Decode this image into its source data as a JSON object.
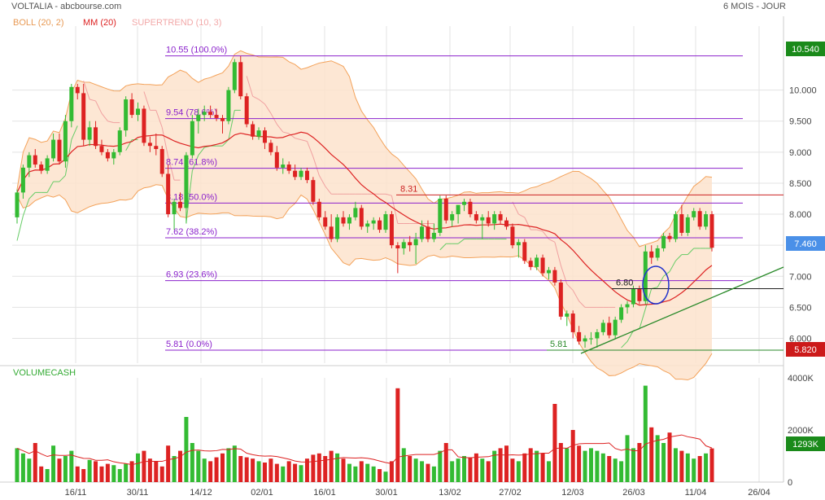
{
  "header": {
    "title": "VOLTALIA - abcbourse.com",
    "period": "6 MOIS - JOUR"
  },
  "legend": {
    "boll": "BOLL (20, 2)",
    "mm": "MM (20)",
    "supertrend": "SUPERTREND (10, 3)",
    "volume": "VOLUMECASH"
  },
  "colors": {
    "up": "#33bb33",
    "down": "#dd2222",
    "boll": "#f3a25a",
    "boll_fill": "#fde3cc",
    "mm": "#dd2222",
    "supertrend_up": "#66cc66",
    "supertrend_down": "#f0a0a0",
    "fib": "#8b22cc",
    "trend": "#2a8a2a",
    "circle": "#2233cc",
    "grid": "#e3e3e3"
  },
  "badges": {
    "top": "10.540",
    "price": "7.460",
    "low": "5.820",
    "volume": "1293K"
  },
  "chart_data": {
    "type": "candlestick",
    "ylim": [
      5.6,
      10.9
    ],
    "y_ticks": [
      "10.000",
      "9.500",
      "9.000",
      "8.500",
      "8.000",
      "7.500",
      "7.000",
      "6.500",
      "6.000"
    ],
    "x_ticks": [
      "16/11",
      "30/11",
      "14/12",
      "02/01",
      "16/01",
      "30/01",
      "13/02",
      "27/02",
      "12/03",
      "26/03",
      "11/04",
      "26/04"
    ],
    "fib_levels": [
      {
        "price": 10.55,
        "label": "10.55  (100.0%)"
      },
      {
        "price": 9.54,
        "label": "9.54  (78.6%)"
      },
      {
        "price": 8.74,
        "label": "8.74  (61.8%)"
      },
      {
        "price": 8.18,
        "label": "8.18  (50.0%)"
      },
      {
        "price": 7.62,
        "label": "7.62  (38.2%)"
      },
      {
        "price": 6.93,
        "label": "6.93  (23.6%)"
      },
      {
        "price": 5.81,
        "label": "5.81  (0.0%)"
      }
    ],
    "annotations": [
      {
        "text": "8.31",
        "price": 8.31
      },
      {
        "text": "6.80",
        "price": 6.8
      },
      {
        "text": "5.81",
        "price": 5.81
      }
    ],
    "volume_ticks": [
      "4000K",
      "2000K",
      "0"
    ],
    "volume_ylim": [
      0,
      4000
    ],
    "candles": [
      [
        7.95,
        8.4,
        7.85,
        8.35
      ],
      [
        8.35,
        8.8,
        8.25,
        8.75
      ],
      [
        8.75,
        9.0,
        8.6,
        8.95
      ],
      [
        8.95,
        9.05,
        8.75,
        8.8
      ],
      [
        8.8,
        8.85,
        8.65,
        8.7
      ],
      [
        8.7,
        8.95,
        8.65,
        8.9
      ],
      [
        8.9,
        9.3,
        8.85,
        9.2
      ],
      [
        9.2,
        9.3,
        8.8,
        8.85
      ],
      [
        8.85,
        9.6,
        8.75,
        9.5
      ],
      [
        9.5,
        10.1,
        9.4,
        10.05
      ],
      [
        10.05,
        10.1,
        9.85,
        9.95
      ],
      [
        9.95,
        10.1,
        9.1,
        9.2
      ],
      [
        9.2,
        9.5,
        9.1,
        9.4
      ],
      [
        9.4,
        9.5,
        9.05,
        9.1
      ],
      [
        9.1,
        9.2,
        8.95,
        9.0
      ],
      [
        9.0,
        9.05,
        8.85,
        8.9
      ],
      [
        8.9,
        9.05,
        8.8,
        9.0
      ],
      [
        9.0,
        9.4,
        8.95,
        9.35
      ],
      [
        9.35,
        9.9,
        9.25,
        9.85
      ],
      [
        9.85,
        9.95,
        9.55,
        9.6
      ],
      [
        9.6,
        9.8,
        9.5,
        9.7
      ],
      [
        9.7,
        9.75,
        9.1,
        9.15
      ],
      [
        9.15,
        9.25,
        9.0,
        9.1
      ],
      [
        9.1,
        9.3,
        8.95,
        9.05
      ],
      [
        9.05,
        9.1,
        8.6,
        8.65
      ],
      [
        8.65,
        8.8,
        7.95,
        8.0
      ],
      [
        8.0,
        8.25,
        7.75,
        8.2
      ],
      [
        8.2,
        8.35,
        8.05,
        8.1
      ],
      [
        8.1,
        9.0,
        7.85,
        8.95
      ],
      [
        8.95,
        9.6,
        8.9,
        9.5
      ],
      [
        9.5,
        9.7,
        9.3,
        9.6
      ],
      [
        9.6,
        9.75,
        9.5,
        9.65
      ],
      [
        9.65,
        9.75,
        9.55,
        9.6
      ],
      [
        9.6,
        9.7,
        9.5,
        9.55
      ],
      [
        9.55,
        9.6,
        9.3,
        9.5
      ],
      [
        9.5,
        10.05,
        9.45,
        10.0
      ],
      [
        10.0,
        10.5,
        9.95,
        10.45
      ],
      [
        10.45,
        10.55,
        9.85,
        9.9
      ],
      [
        9.9,
        9.95,
        9.4,
        9.45
      ],
      [
        9.45,
        9.5,
        9.2,
        9.25
      ],
      [
        9.25,
        9.4,
        9.2,
        9.35
      ],
      [
        9.35,
        9.4,
        9.05,
        9.15
      ],
      [
        9.15,
        9.2,
        8.95,
        9.0
      ],
      [
        9.0,
        9.1,
        8.7,
        8.75
      ],
      [
        8.75,
        8.9,
        8.65,
        8.8
      ],
      [
        8.8,
        8.85,
        8.65,
        8.7
      ],
      [
        8.7,
        8.8,
        8.55,
        8.6
      ],
      [
        8.6,
        8.75,
        8.55,
        8.7
      ],
      [
        8.7,
        8.75,
        8.5,
        8.55
      ],
      [
        8.55,
        8.6,
        8.15,
        8.2
      ],
      [
        8.2,
        8.25,
        7.9,
        7.95
      ],
      [
        7.95,
        8.05,
        7.75,
        7.8
      ],
      [
        7.8,
        8.0,
        7.55,
        7.6
      ],
      [
        7.6,
        8.0,
        7.55,
        7.95
      ],
      [
        7.95,
        8.05,
        7.8,
        7.85
      ],
      [
        7.85,
        8.0,
        7.75,
        7.95
      ],
      [
        7.95,
        8.2,
        7.9,
        8.1
      ],
      [
        8.1,
        8.15,
        7.75,
        7.8
      ],
      [
        7.8,
        7.9,
        7.7,
        7.85
      ],
      [
        7.85,
        7.95,
        7.75,
        7.9
      ],
      [
        7.9,
        7.95,
        7.7,
        7.75
      ],
      [
        7.75,
        8.05,
        7.7,
        8.0
      ],
      [
        8.0,
        8.05,
        7.45,
        7.5
      ],
      [
        7.5,
        7.55,
        7.05,
        7.45
      ],
      [
        7.45,
        7.6,
        7.35,
        7.55
      ],
      [
        7.55,
        7.65,
        7.4,
        7.5
      ],
      [
        7.5,
        7.7,
        7.2,
        7.6
      ],
      [
        7.6,
        7.9,
        7.55,
        7.8
      ],
      [
        7.8,
        7.9,
        7.55,
        7.6
      ],
      [
        7.6,
        7.85,
        7.55,
        7.7
      ],
      [
        7.7,
        8.3,
        7.65,
        8.25
      ],
      [
        8.25,
        8.3,
        7.85,
        7.9
      ],
      [
        7.9,
        8.05,
        7.8,
        8.0
      ],
      [
        8.0,
        8.1,
        7.85,
        8.15
      ],
      [
        8.15,
        8.25,
        8.05,
        8.2
      ],
      [
        8.2,
        8.25,
        7.95,
        8.0
      ],
      [
        8.0,
        8.05,
        7.85,
        7.9
      ],
      [
        7.9,
        8.0,
        7.6,
        7.95
      ],
      [
        7.95,
        8.05,
        7.8,
        7.85
      ],
      [
        7.85,
        8.05,
        7.75,
        8.0
      ],
      [
        8.0,
        8.05,
        7.85,
        7.9
      ],
      [
        7.9,
        7.95,
        7.75,
        7.8
      ],
      [
        7.8,
        7.85,
        7.45,
        7.5
      ],
      [
        7.5,
        7.6,
        7.3,
        7.55
      ],
      [
        7.55,
        7.6,
        7.2,
        7.25
      ],
      [
        7.25,
        7.3,
        7.1,
        7.15
      ],
      [
        7.15,
        7.35,
        7.1,
        7.3
      ],
      [
        7.3,
        7.35,
        7.0,
        7.05
      ],
      [
        7.05,
        7.15,
        6.95,
        7.1
      ],
      [
        7.1,
        7.15,
        6.85,
        6.9
      ],
      [
        6.9,
        6.95,
        6.3,
        6.35
      ],
      [
        6.35,
        6.45,
        6.2,
        6.4
      ],
      [
        6.4,
        6.45,
        6.0,
        6.1
      ],
      [
        6.1,
        6.2,
        5.9,
        5.95
      ],
      [
        5.95,
        6.05,
        5.85,
        6.0
      ],
      [
        6.0,
        6.1,
        5.9,
        6.0
      ],
      [
        6.0,
        6.15,
        5.85,
        6.1
      ],
      [
        6.1,
        6.3,
        6.05,
        6.25
      ],
      [
        6.25,
        6.35,
        6.0,
        6.05
      ],
      [
        6.05,
        6.35,
        6.0,
        6.3
      ],
      [
        6.3,
        6.55,
        6.25,
        6.5
      ],
      [
        6.5,
        6.6,
        6.4,
        6.55
      ],
      [
        6.55,
        6.85,
        6.5,
        6.8
      ],
      [
        6.8,
        6.85,
        6.55,
        6.6
      ],
      [
        6.6,
        7.5,
        6.55,
        7.4
      ],
      [
        7.4,
        7.5,
        7.2,
        7.3
      ],
      [
        7.3,
        7.5,
        7.25,
        7.45
      ],
      [
        7.45,
        7.7,
        7.4,
        7.65
      ],
      [
        7.65,
        7.7,
        7.55,
        7.6
      ],
      [
        7.6,
        8.05,
        7.55,
        8.0
      ],
      [
        8.0,
        8.15,
        7.65,
        7.7
      ],
      [
        7.7,
        8.0,
        7.65,
        7.95
      ],
      [
        7.95,
        8.1,
        7.9,
        8.05
      ],
      [
        8.05,
        8.1,
        7.75,
        7.8
      ],
      [
        7.8,
        8.05,
        7.75,
        8.0
      ],
      [
        8.0,
        8.05,
        7.4,
        7.46
      ]
    ],
    "volumes": [
      1300,
      1100,
      900,
      1500,
      600,
      500,
      1400,
      900,
      1000,
      1200,
      600,
      500,
      850,
      800,
      600,
      700,
      650,
      500,
      700,
      800,
      1100,
      1200,
      900,
      800,
      600,
      1400,
      1000,
      1200,
      2500,
      1500,
      1200,
      900,
      800,
      950,
      1100,
      1300,
      1400,
      1000,
      950,
      900,
      800,
      750,
      900,
      700,
      600,
      800,
      700,
      650,
      900,
      1050,
      1100,
      1000,
      1200,
      1100,
      900,
      700,
      600,
      800,
      700,
      600,
      500,
      400,
      800,
      3600,
      1300,
      1000,
      900,
      800,
      700,
      600,
      1200,
      1500,
      800,
      900,
      1000,
      950,
      1100,
      900,
      800,
      1200,
      1300,
      1400,
      900,
      800,
      1100,
      1300,
      1200,
      1100,
      800,
      3000,
      1500,
      1300,
      2000,
      1400,
      1200,
      1300,
      1200,
      1100,
      1000,
      900,
      800,
      1800,
      1300,
      1500,
      3700,
      2100,
      1800,
      1500,
      1900,
      1300,
      1200,
      1100,
      900,
      1000,
      1100,
      1293
    ]
  }
}
